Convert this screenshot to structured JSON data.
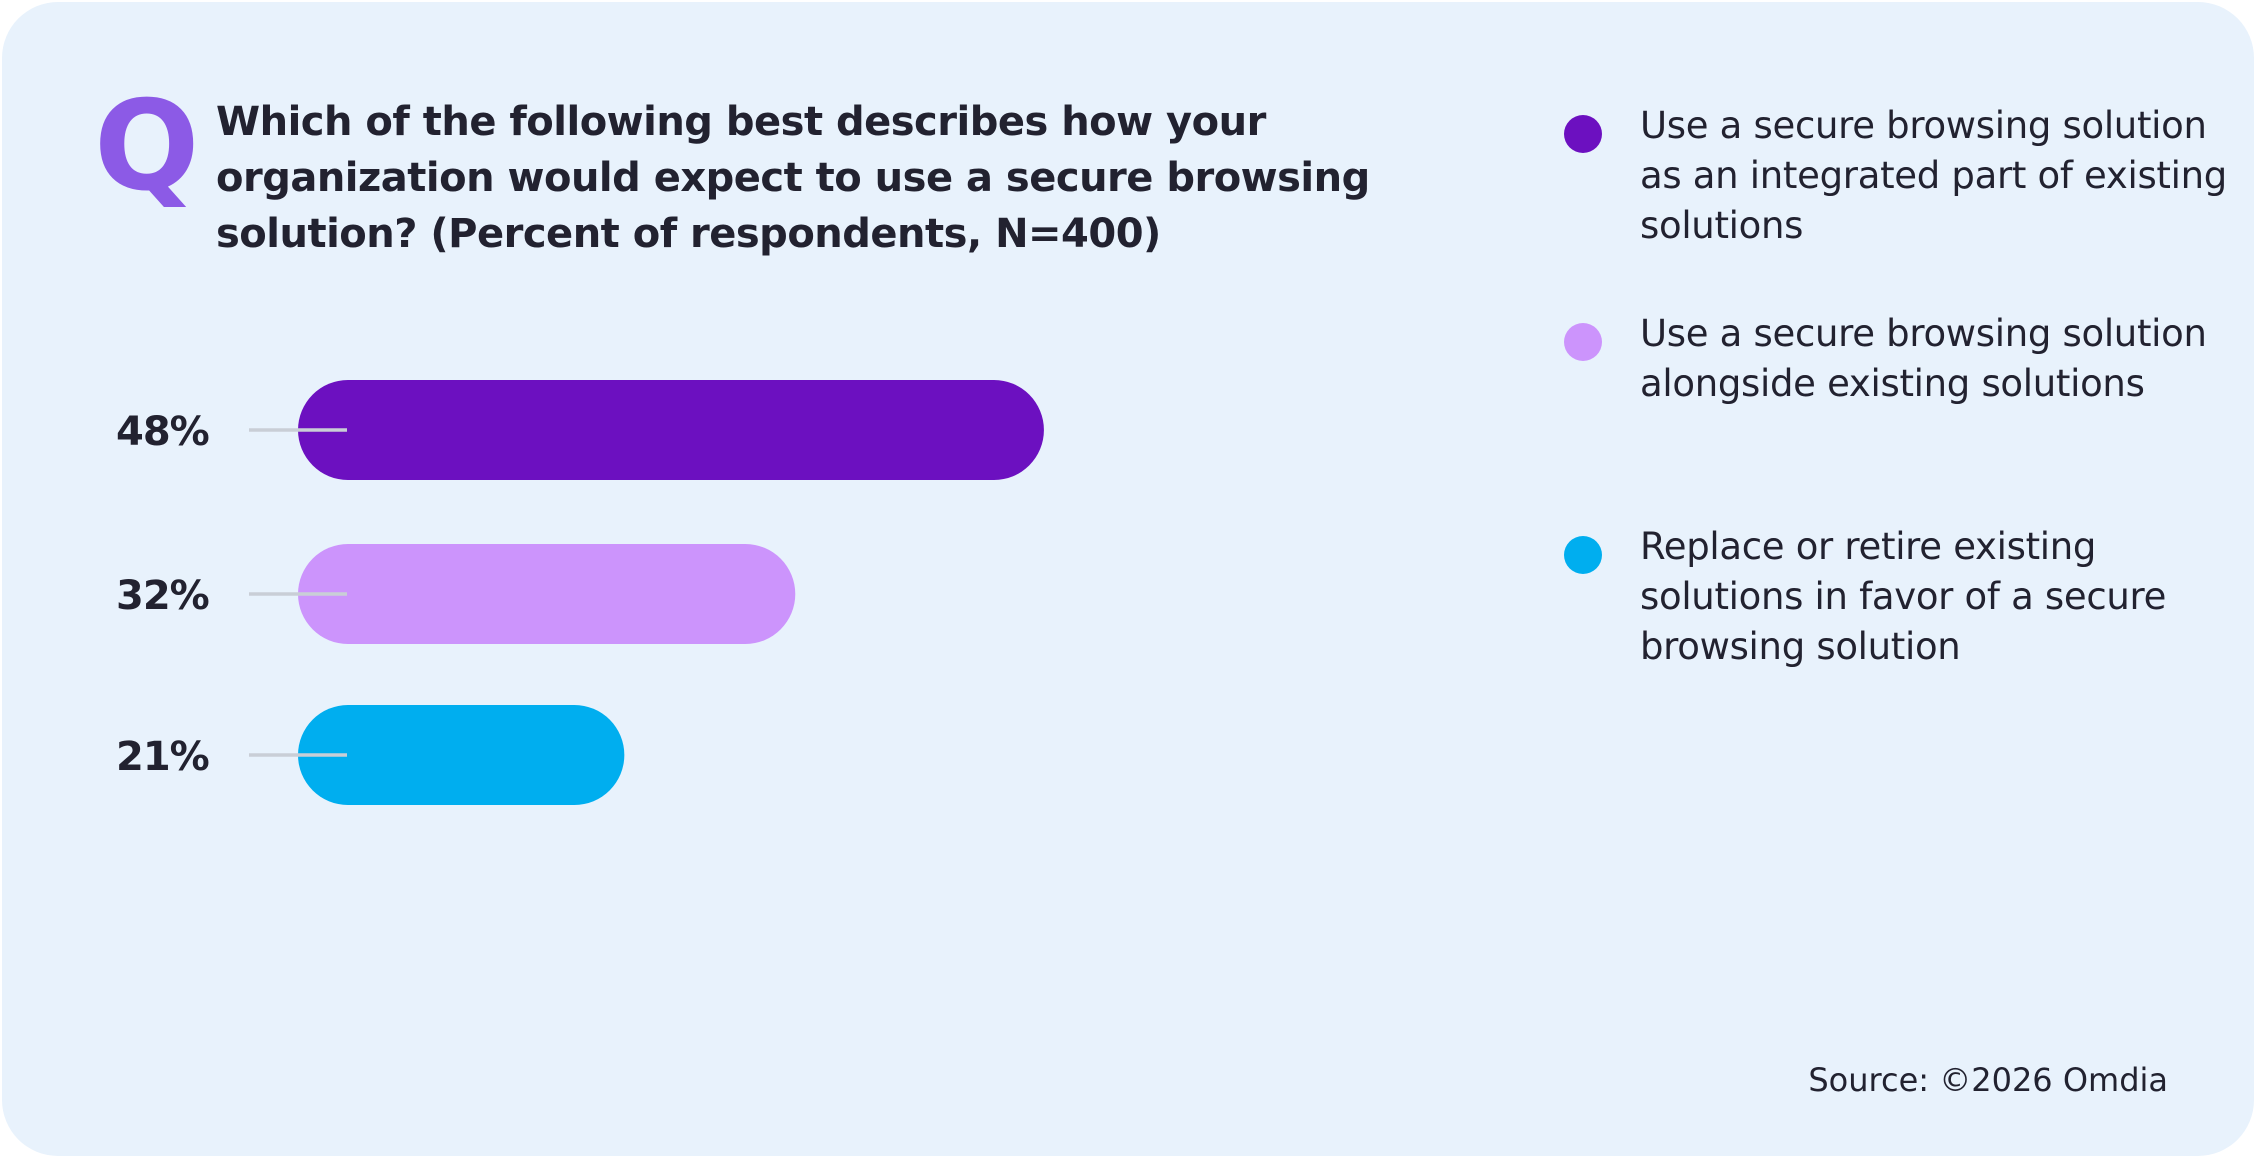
{
  "chart_data": {
    "type": "bar",
    "orientation": "horizontal",
    "title_marker": "Q",
    "title": "Which of the following best describes how your organization would expect to use a secure browsing solution? (Percent of respondents, N=400)",
    "categories": [
      "Use a secure browsing solution as an integrated part of existing solutions",
      "Use a secure browsing solution alongside existing solutions",
      "Replace or retire existing solutions in favor of a secure browsing solution"
    ],
    "values": [
      48,
      32,
      21
    ],
    "value_labels": [
      "48%",
      "32%",
      "21%"
    ],
    "colors": [
      "#6c10c0",
      "#cc94fc",
      "#00aeef"
    ],
    "source": "Source: ©2026 Omdia"
  }
}
